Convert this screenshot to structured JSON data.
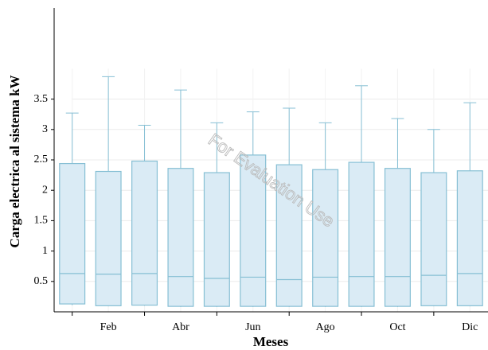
{
  "chart_data": {
    "type": "box",
    "x_label": "Meses",
    "y_label": "Carga electrica al sistema kW",
    "annotation": "For Evaluation Use",
    "categories": [
      null,
      "Feb",
      null,
      "Abr",
      null,
      "Jun",
      null,
      "Ago",
      null,
      "Oct",
      null,
      "Dic"
    ],
    "min": [
      0.11,
      0.09,
      0.1,
      0.08,
      0.08,
      0.08,
      0.08,
      0.08,
      0.08,
      0.08,
      0.09,
      0.09
    ],
    "q1": [
      0.13,
      0.1,
      0.11,
      0.09,
      0.09,
      0.09,
      0.09,
      0.09,
      0.09,
      0.09,
      0.1,
      0.1
    ],
    "median": [
      0.63,
      0.62,
      0.63,
      0.58,
      0.55,
      0.57,
      0.53,
      0.57,
      0.58,
      0.58,
      0.6,
      0.63
    ],
    "q3": [
      2.44,
      2.31,
      2.48,
      2.36,
      2.29,
      2.58,
      2.42,
      2.34,
      2.46,
      2.36,
      2.29,
      2.32
    ],
    "max": [
      3.27,
      3.87,
      3.07,
      3.65,
      3.11,
      3.29,
      3.35,
      3.11,
      3.72,
      3.18,
      3.0,
      3.44
    ],
    "color": "#daebf5",
    "edge_color": "#86bfd4",
    "ylim": [
      0,
      5
    ],
    "yticks": [
      0.5,
      1,
      1.5,
      2,
      2.5,
      3,
      3.5
    ],
    "grid": true
  }
}
